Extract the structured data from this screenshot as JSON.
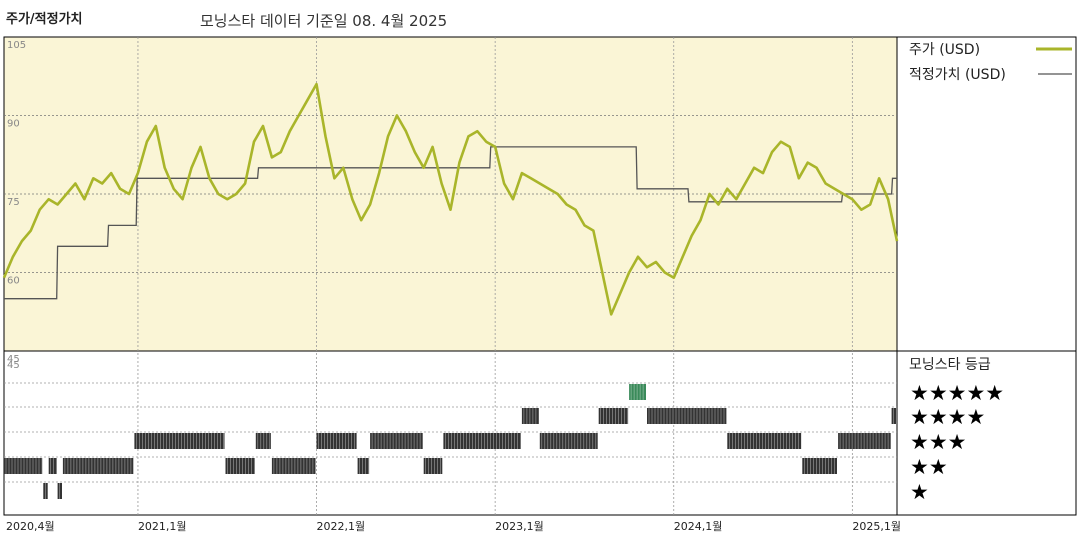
{
  "title": "주가/적정가치",
  "subtitle": "모닝스타 데이터 기준일 08. 4월 2025",
  "colors": {
    "price": "#a9b52a",
    "fair": "#555555",
    "panel_bg": "#faf5d6",
    "rating_bar": "#333333",
    "rating_highlight": "#3a8a5a"
  },
  "chart_data": [
    {
      "type": "line",
      "title": "주가/적정가치",
      "ylim": [
        45,
        105
      ],
      "yticks": [
        105,
        90,
        75,
        60,
        45
      ],
      "xticks": [
        "2020,4월",
        "2021,1월",
        "2022,1월",
        "2023,1월",
        "2024,1월",
        "2025,1월"
      ],
      "xtick_t": [
        2020.25,
        2021.0,
        2022.0,
        2023.0,
        2024.0,
        2025.0
      ],
      "series": [
        {
          "name": "주가 (USD)",
          "t": [
            2020.25,
            2020.3,
            2020.35,
            2020.4,
            2020.45,
            2020.5,
            2020.55,
            2020.6,
            2020.65,
            2020.7,
            2020.75,
            2020.8,
            2020.85,
            2020.9,
            2020.95,
            2021.0,
            2021.05,
            2021.1,
            2021.15,
            2021.2,
            2021.25,
            2021.3,
            2021.35,
            2021.4,
            2021.45,
            2021.5,
            2021.55,
            2021.6,
            2021.65,
            2021.7,
            2021.75,
            2021.8,
            2021.85,
            2021.9,
            2021.95,
            2022.0,
            2022.05,
            2022.1,
            2022.15,
            2022.2,
            2022.25,
            2022.3,
            2022.35,
            2022.4,
            2022.45,
            2022.5,
            2022.55,
            2022.6,
            2022.65,
            2022.7,
            2022.75,
            2022.8,
            2022.85,
            2022.9,
            2022.95,
            2023.0,
            2023.05,
            2023.1,
            2023.15,
            2023.2,
            2023.25,
            2023.3,
            2023.35,
            2023.4,
            2023.45,
            2023.5,
            2023.55,
            2023.6,
            2023.65,
            2023.7,
            2023.75,
            2023.8,
            2023.85,
            2023.9,
            2023.95,
            2024.0,
            2024.05,
            2024.1,
            2024.15,
            2024.2,
            2024.25,
            2024.3,
            2024.35,
            2024.4,
            2024.45,
            2024.5,
            2024.55,
            2024.6,
            2024.65,
            2024.7,
            2024.75,
            2024.8,
            2024.85,
            2024.9,
            2024.95,
            2025.0,
            2025.05,
            2025.1,
            2025.15,
            2025.2,
            2025.25
          ],
          "values": [
            59,
            63,
            66,
            68,
            72,
            74,
            73,
            75,
            77,
            74,
            78,
            77,
            79,
            76,
            75,
            79,
            85,
            88,
            80,
            76,
            74,
            80,
            84,
            78,
            75,
            74,
            75,
            77,
            85,
            88,
            82,
            83,
            87,
            90,
            93,
            96,
            86,
            78,
            80,
            74,
            70,
            73,
            79,
            86,
            90,
            87,
            83,
            80,
            84,
            77,
            72,
            81,
            86,
            87,
            85,
            84,
            77,
            74,
            79,
            78,
            77,
            76,
            75,
            73,
            72,
            69,
            68,
            60,
            52,
            56,
            60,
            63,
            61,
            62,
            60,
            59,
            63,
            67,
            70,
            75,
            73,
            76,
            74,
            77,
            80,
            79,
            83,
            85,
            84,
            78,
            81,
            80,
            77,
            76,
            75,
            74,
            72,
            73,
            78,
            74,
            66
          ]
        },
        {
          "name": "적정가치 (USD)",
          "t": [
            2020.25,
            2020.545,
            2020.55,
            2020.83,
            2020.835,
            2020.99,
            2020.995,
            2021.67,
            2021.675,
            2022.97,
            2022.975,
            2023.79,
            2023.795,
            2024.08,
            2024.085,
            2024.94,
            2024.945,
            2025.22,
            2025.225,
            2025.25
          ],
          "values": [
            55,
            55,
            65,
            65,
            69,
            69,
            78,
            78,
            80,
            80,
            84,
            84,
            76,
            76,
            73.5,
            73.5,
            75,
            75,
            78,
            78
          ]
        }
      ]
    },
    {
      "type": "bar",
      "title": "모닝스타 등급",
      "levels": [
        "★★★★★",
        "★★★★",
        "★★★",
        "★★",
        "★"
      ],
      "segments": [
        {
          "start": 2020.25,
          "end": 2020.47,
          "rating": 2
        },
        {
          "start": 2020.47,
          "end": 2020.5,
          "rating": 1
        },
        {
          "start": 2020.5,
          "end": 2020.55,
          "rating": 2
        },
        {
          "start": 2020.55,
          "end": 2020.58,
          "rating": 1
        },
        {
          "start": 2020.58,
          "end": 2020.98,
          "rating": 2
        },
        {
          "start": 2020.98,
          "end": 2021.49,
          "rating": 3
        },
        {
          "start": 2021.49,
          "end": 2021.66,
          "rating": 2
        },
        {
          "start": 2021.66,
          "end": 2021.75,
          "rating": 3
        },
        {
          "start": 2021.75,
          "end": 2022.0,
          "rating": 2
        },
        {
          "start": 2022.0,
          "end": 2022.23,
          "rating": 3
        },
        {
          "start": 2022.23,
          "end": 2022.3,
          "rating": 2
        },
        {
          "start": 2022.3,
          "end": 2022.6,
          "rating": 3
        },
        {
          "start": 2022.6,
          "end": 2022.71,
          "rating": 2
        },
        {
          "start": 2022.71,
          "end": 2023.15,
          "rating": 3
        },
        {
          "start": 2023.15,
          "end": 2023.25,
          "rating": 4
        },
        {
          "start": 2023.25,
          "end": 2023.58,
          "rating": 3
        },
        {
          "start": 2023.58,
          "end": 2023.75,
          "rating": 4
        },
        {
          "start": 2023.75,
          "end": 2023.85,
          "rating": 5
        },
        {
          "start": 2023.85,
          "end": 2024.3,
          "rating": 4
        },
        {
          "start": 2024.3,
          "end": 2024.72,
          "rating": 3
        },
        {
          "start": 2024.72,
          "end": 2024.92,
          "rating": 2
        },
        {
          "start": 2024.92,
          "end": 2025.22,
          "rating": 3
        },
        {
          "start": 2025.22,
          "end": 2025.25,
          "rating": 4
        }
      ]
    }
  ]
}
